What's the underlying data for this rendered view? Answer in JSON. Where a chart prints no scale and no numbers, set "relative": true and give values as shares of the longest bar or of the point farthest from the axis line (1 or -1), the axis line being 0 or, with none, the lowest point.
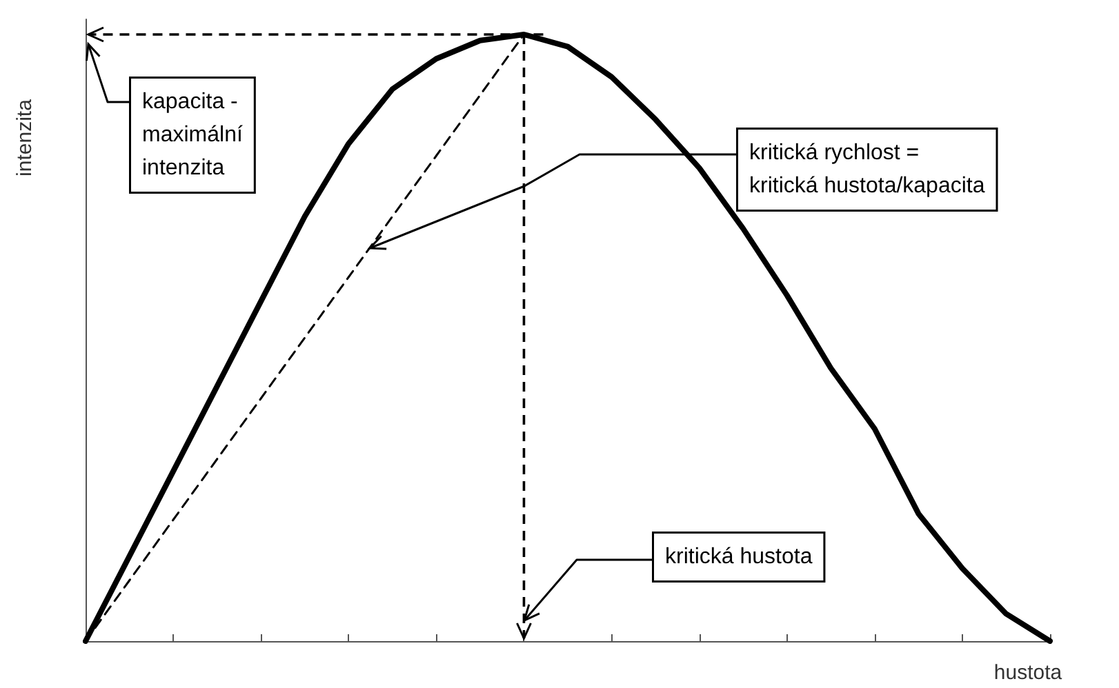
{
  "chart_data": {
    "type": "line",
    "xlabel": "hustota",
    "ylabel": "intenzita",
    "relative": true,
    "marker": "none",
    "categories": [
      null,
      null,
      null,
      null,
      null,
      null,
      null,
      null,
      null,
      null,
      null,
      null,
      null,
      null,
      null,
      null,
      null,
      null,
      null,
      null,
      null,
      null,
      null
    ],
    "series": [
      {
        "color": "#000000",
        "line_style": "solid",
        "values": [
          0,
          0.14,
          0.28,
          0.42,
          0.56,
          0.7,
          0.82,
          0.91,
          0.96,
          0.99,
          1,
          0.98,
          0.93,
          0.86,
          0.78,
          0.68,
          0.57,
          0.45,
          0.35,
          0.21,
          0.12,
          0.045,
          0
        ]
      },
      {
        "color": "#000000",
        "line_style": "dashed",
        "values": [
          0,
          0.1,
          0.2,
          0.3,
          0.4,
          0.5,
          0.6,
          0.7,
          0.8,
          0.9,
          1,
          null,
          null,
          null,
          null,
          null,
          null,
          null,
          null,
          null,
          null,
          null,
          null
        ]
      }
    ],
    "annotations": [
      "kapacita -\nmaximální\nintenzita",
      "kritická rychlost =\nkritická hustota/kapacita",
      "kritická hustota"
    ]
  }
}
